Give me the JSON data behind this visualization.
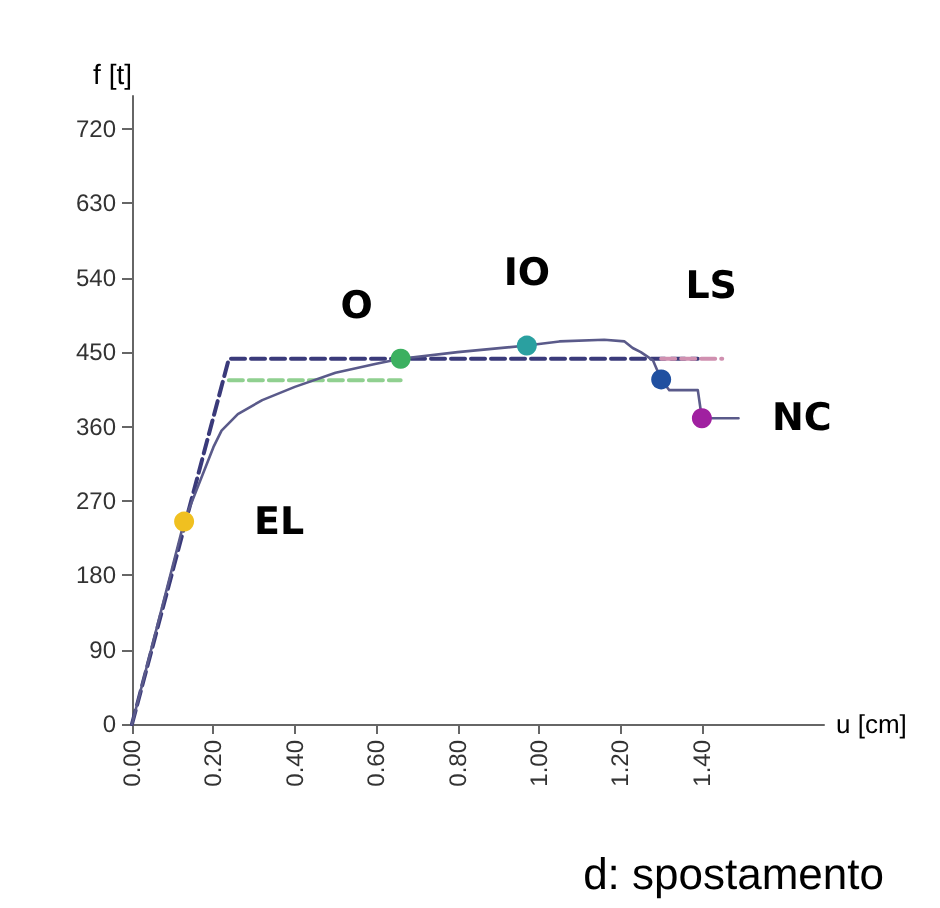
{
  "chart_data": {
    "type": "line",
    "xlabel": "u [cm]",
    "ylabel": "f [t]",
    "annotations": [
      "d: spostamento"
    ],
    "xlim": [
      0,
      1.7
    ],
    "ylim": [
      0,
      760
    ],
    "xticks": [
      {
        "value": 0,
        "label": "0.00"
      },
      {
        "value": 0.2,
        "label": "0.20"
      },
      {
        "value": 0.4,
        "label": "0.40"
      },
      {
        "value": 0.6,
        "label": "0.60"
      },
      {
        "value": 0.8,
        "label": "0.80"
      },
      {
        "value": 1.0,
        "label": "1.00"
      },
      {
        "value": 1.2,
        "label": "1.20"
      },
      {
        "value": 1.4,
        "label": "1.40"
      }
    ],
    "yticks": [
      0,
      90,
      180,
      270,
      360,
      450,
      540,
      630,
      720
    ],
    "grid": false,
    "legend": false,
    "series": [
      {
        "color": "#5a5a8a",
        "x": [
          0,
          0.128,
          0.2,
          0.22,
          0.26,
          0.32,
          0.4,
          0.5,
          0.6,
          0.66,
          0.8,
          0.97,
          1.05,
          1.16,
          1.21,
          1.23,
          1.25,
          1.28,
          1.3,
          1.32,
          1.39,
          1.4,
          1.49
        ],
        "values": [
          0,
          245,
          335,
          355,
          375,
          392,
          408,
          425,
          436,
          442,
          450,
          458,
          463,
          465,
          463,
          455,
          450,
          440,
          417,
          404,
          404,
          370,
          370
        ],
        "line_style": "solid"
      },
      {
        "color": "#3a3a7a",
        "x": [
          0,
          0.238,
          1.39
        ],
        "values": [
          0,
          442,
          442
        ],
        "line_style": "dashed"
      },
      {
        "color": "#90d090",
        "x": [
          0.238,
          0.66
        ],
        "values": [
          416,
          416
        ],
        "line_style": "dashed"
      },
      {
        "color": "#d090b0",
        "x": [
          1.3,
          1.45
        ],
        "values": [
          442,
          442
        ],
        "line_style": "dashed"
      },
      {
        "type": "scatter",
        "name": "EL",
        "color": "#f0c020",
        "x": [
          0.128
        ],
        "values": [
          245
        ]
      },
      {
        "type": "scatter",
        "name": "O",
        "color": "#3cb060",
        "x": [
          0.66
        ],
        "values": [
          442
        ]
      },
      {
        "type": "scatter",
        "name": "IO",
        "color": "#2aa0a0",
        "x": [
          0.97
        ],
        "values": [
          458
        ]
      },
      {
        "type": "scatter",
        "name": "LS",
        "color": "#2050a0",
        "x": [
          1.3
        ],
        "values": [
          417
        ]
      },
      {
        "type": "scatter",
        "name": "NC",
        "color": "#a020a0",
        "x": [
          1.4
        ],
        "values": [
          370
        ]
      }
    ]
  }
}
